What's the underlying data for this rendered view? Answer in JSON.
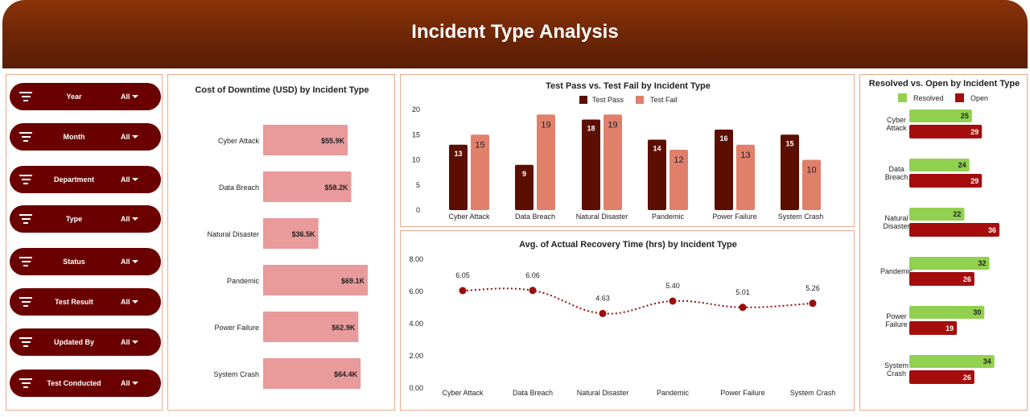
{
  "header": {
    "title": "Incident Type Analysis"
  },
  "filters": [
    {
      "label": "Year",
      "value": "All"
    },
    {
      "label": "Month",
      "value": "All"
    },
    {
      "label": "Department",
      "value": "All"
    },
    {
      "label": "Type",
      "value": "All"
    },
    {
      "label": "Status",
      "value": "All"
    },
    {
      "label": "Test Result",
      "value": "All"
    },
    {
      "label": "Updated By",
      "value": "All"
    },
    {
      "label": "Test Conducted",
      "value": "All"
    }
  ],
  "colors": {
    "header": "#6a2406",
    "slicer": "#6b0000",
    "cost_bar": "#e99a9a",
    "pass": "#5c0f00",
    "fail": "#e0806b",
    "line": "#9b0d0d",
    "resolved": "#92d050",
    "open": "#a50d0d",
    "panel_border": "#e9a98f"
  },
  "chart_data": [
    {
      "type": "bar",
      "orientation": "horizontal",
      "title": "Cost of Downtime (USD) by Incident Type",
      "categories": [
        "Cyber Attack",
        "Data Breach",
        "Natural Disaster",
        "Pandemic",
        "Power Failure",
        "System Crash"
      ],
      "values": [
        55.9,
        58.2,
        36.5,
        69.1,
        62.9,
        64.4
      ],
      "labels": [
        "$55.9K",
        "$58.2K",
        "$36.5K",
        "$69.1K",
        "$62.9K",
        "$64.4K"
      ]
    },
    {
      "type": "bar",
      "title": "Test Pass vs. Test Fail by Incident Type",
      "categories": [
        "Cyber Attack",
        "Data Breach",
        "Natural Disaster",
        "Pandemic",
        "Power Failure",
        "System Crash"
      ],
      "series": [
        {
          "name": "Test Pass",
          "values": [
            13,
            9,
            18,
            14,
            16,
            15
          ]
        },
        {
          "name": "Test Fail",
          "values": [
            15,
            19,
            19,
            12,
            13,
            10
          ]
        }
      ],
      "yticks": [
        "0",
        "5",
        "10",
        "15",
        "20"
      ],
      "ylim": [
        0,
        20
      ],
      "legend": "top"
    },
    {
      "type": "line",
      "title": "Avg. of Actual Recovery Time (hrs) by Incident Type",
      "categories": [
        "Cyber Attack",
        "Data Breach",
        "Natural Disaster",
        "Pandemic",
        "Power Failure",
        "System Crash"
      ],
      "values": [
        6.05,
        6.06,
        4.63,
        5.4,
        5.01,
        5.26
      ],
      "labels": [
        "6.05",
        "6.06",
        "4.63",
        "5.40",
        "5.01",
        "5.26"
      ],
      "yticks": [
        "0.00",
        "2.00",
        "4.00",
        "6.00",
        "8.00"
      ],
      "ylim": [
        0,
        8
      ]
    },
    {
      "type": "bar",
      "orientation": "horizontal",
      "title": "Resolved vs. Open by Incident Type",
      "categories": [
        [
          "Cyber",
          "Attack"
        ],
        [
          "Data",
          "Breach"
        ],
        [
          "Natural",
          "Disaster"
        ],
        [
          "Pandemic"
        ],
        [
          "Power",
          "Failure"
        ],
        [
          "System",
          "Crash"
        ]
      ],
      "series": [
        {
          "name": "Resolved",
          "values": [
            25,
            24,
            22,
            32,
            30,
            34
          ]
        },
        {
          "name": "Open",
          "values": [
            29,
            29,
            36,
            26,
            19,
            26
          ]
        }
      ],
      "legend": "top"
    }
  ]
}
